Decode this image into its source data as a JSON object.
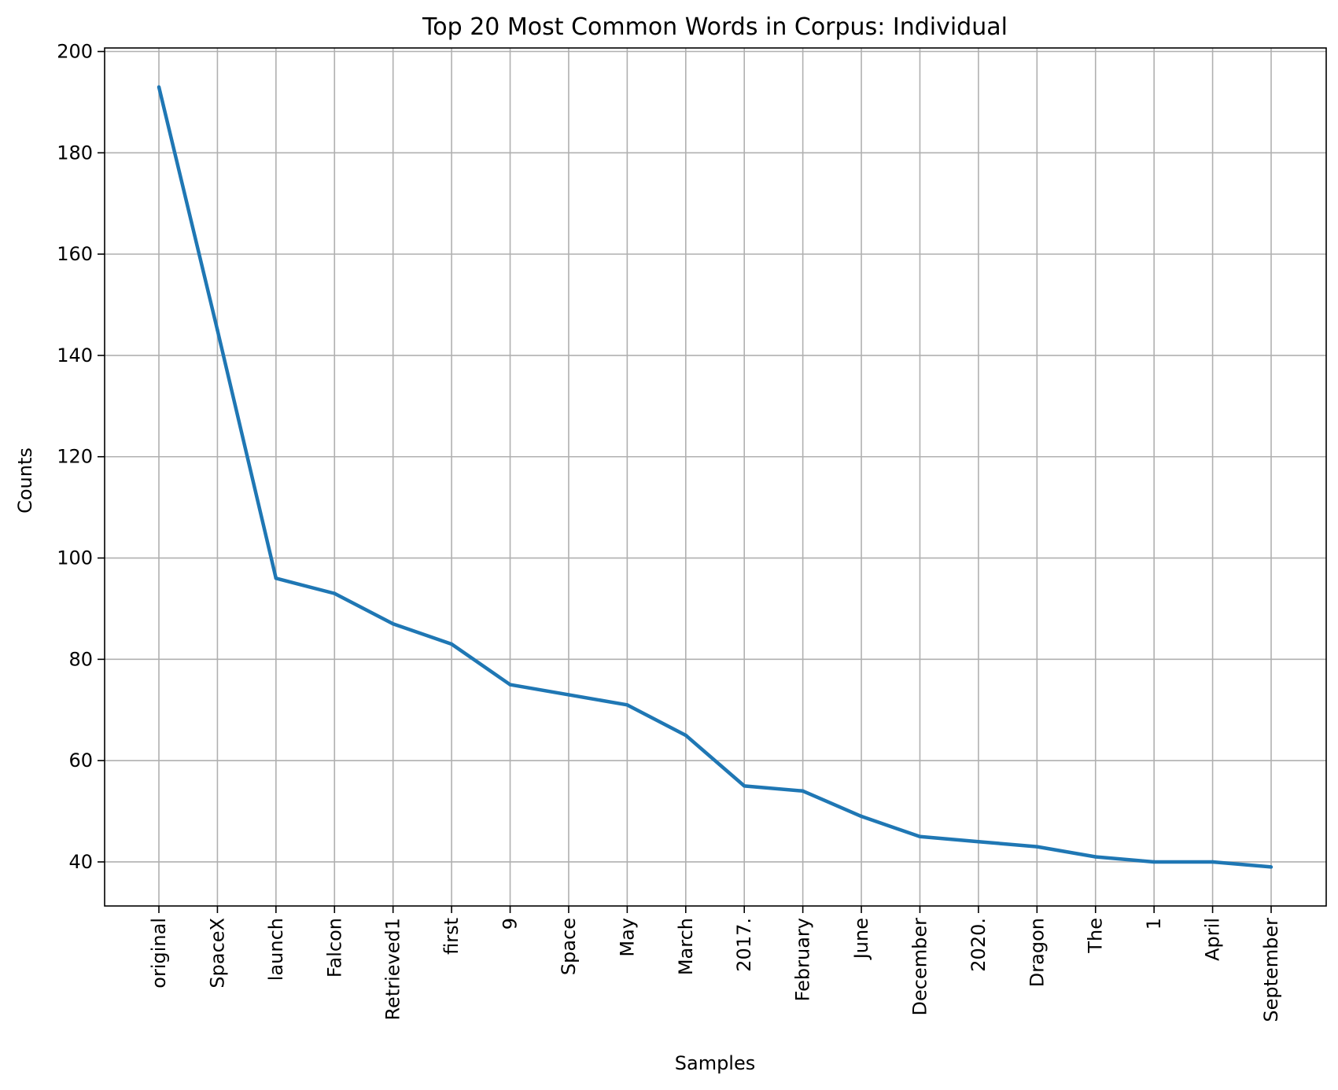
{
  "chart_data": {
    "type": "line",
    "title": "Top 20 Most Common Words in Corpus: Individual",
    "xlabel": "Samples",
    "ylabel": "Counts",
    "categories": [
      "original",
      "SpaceX",
      "launch",
      "Falcon",
      "Retrieved1",
      "first",
      "9",
      "Space",
      "May",
      "March",
      "2017.",
      "February",
      "June",
      "December",
      "2020.",
      "Dragon",
      "The",
      "1",
      "April",
      "September"
    ],
    "series": [
      {
        "values": [
          193,
          145,
          96,
          93,
          87,
          83,
          75,
          73,
          71,
          65,
          55,
          54,
          49,
          45,
          44,
          43,
          41,
          40,
          40,
          39
        ]
      }
    ],
    "ylim": [
      31.3,
      200.7
    ],
    "yticks": [
      40,
      60,
      80,
      100,
      120,
      140,
      160,
      180,
      200
    ],
    "grid": true,
    "legend": "none",
    "line_color": "#1f77b4",
    "grid_color": "#b0b0b0"
  }
}
